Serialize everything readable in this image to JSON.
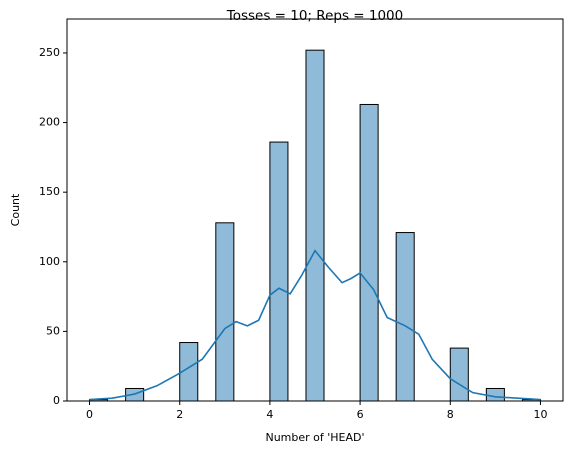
{
  "chart_data": {
    "type": "histogram",
    "title": "Tosses = 10; Reps = 1000",
    "x_label": "Number of 'HEAD'",
    "y_label": "Count",
    "bins": [
      0,
      0.4,
      0.8,
      1.2,
      1.6,
      2,
      2.4,
      2.8,
      3.2,
      3.6,
      4,
      4.4,
      4.8,
      5.2,
      5.6,
      6,
      6.4,
      6.8,
      7.2,
      7.6,
      8,
      8.4,
      8.8,
      9.2,
      9.6,
      10
    ],
    "values": [
      1,
      0,
      9,
      0,
      0,
      42,
      0,
      128,
      0,
      0,
      186,
      0,
      252,
      0,
      0,
      213,
      0,
      121,
      0,
      0,
      38,
      0,
      9,
      0,
      1
    ],
    "color": "#1f77b4",
    "kde_x": [
      0,
      0.5,
      1,
      1.5,
      2,
      2.5,
      3,
      3.25,
      3.5,
      3.75,
      4,
      4.2,
      4.45,
      4.7,
      5,
      5.3,
      5.6,
      5.8,
      6,
      6.3,
      6.6,
      7,
      7.3,
      7.6,
      8,
      8.5,
      9,
      9.5,
      10
    ],
    "kde_y": [
      1,
      2,
      5,
      11,
      20,
      30,
      52,
      57,
      54,
      58,
      76,
      81,
      77,
      90,
      108,
      96,
      85,
      88,
      92,
      80,
      60,
      54,
      48,
      30,
      16,
      6,
      3,
      2,
      1
    ],
    "xlim": [
      -0.5,
      10.5
    ],
    "ylim": [
      0,
      274.4
    ],
    "xticks": [
      0,
      2,
      4,
      6,
      8,
      10
    ],
    "yticks": [
      0,
      50,
      100,
      150,
      200,
      250
    ]
  }
}
